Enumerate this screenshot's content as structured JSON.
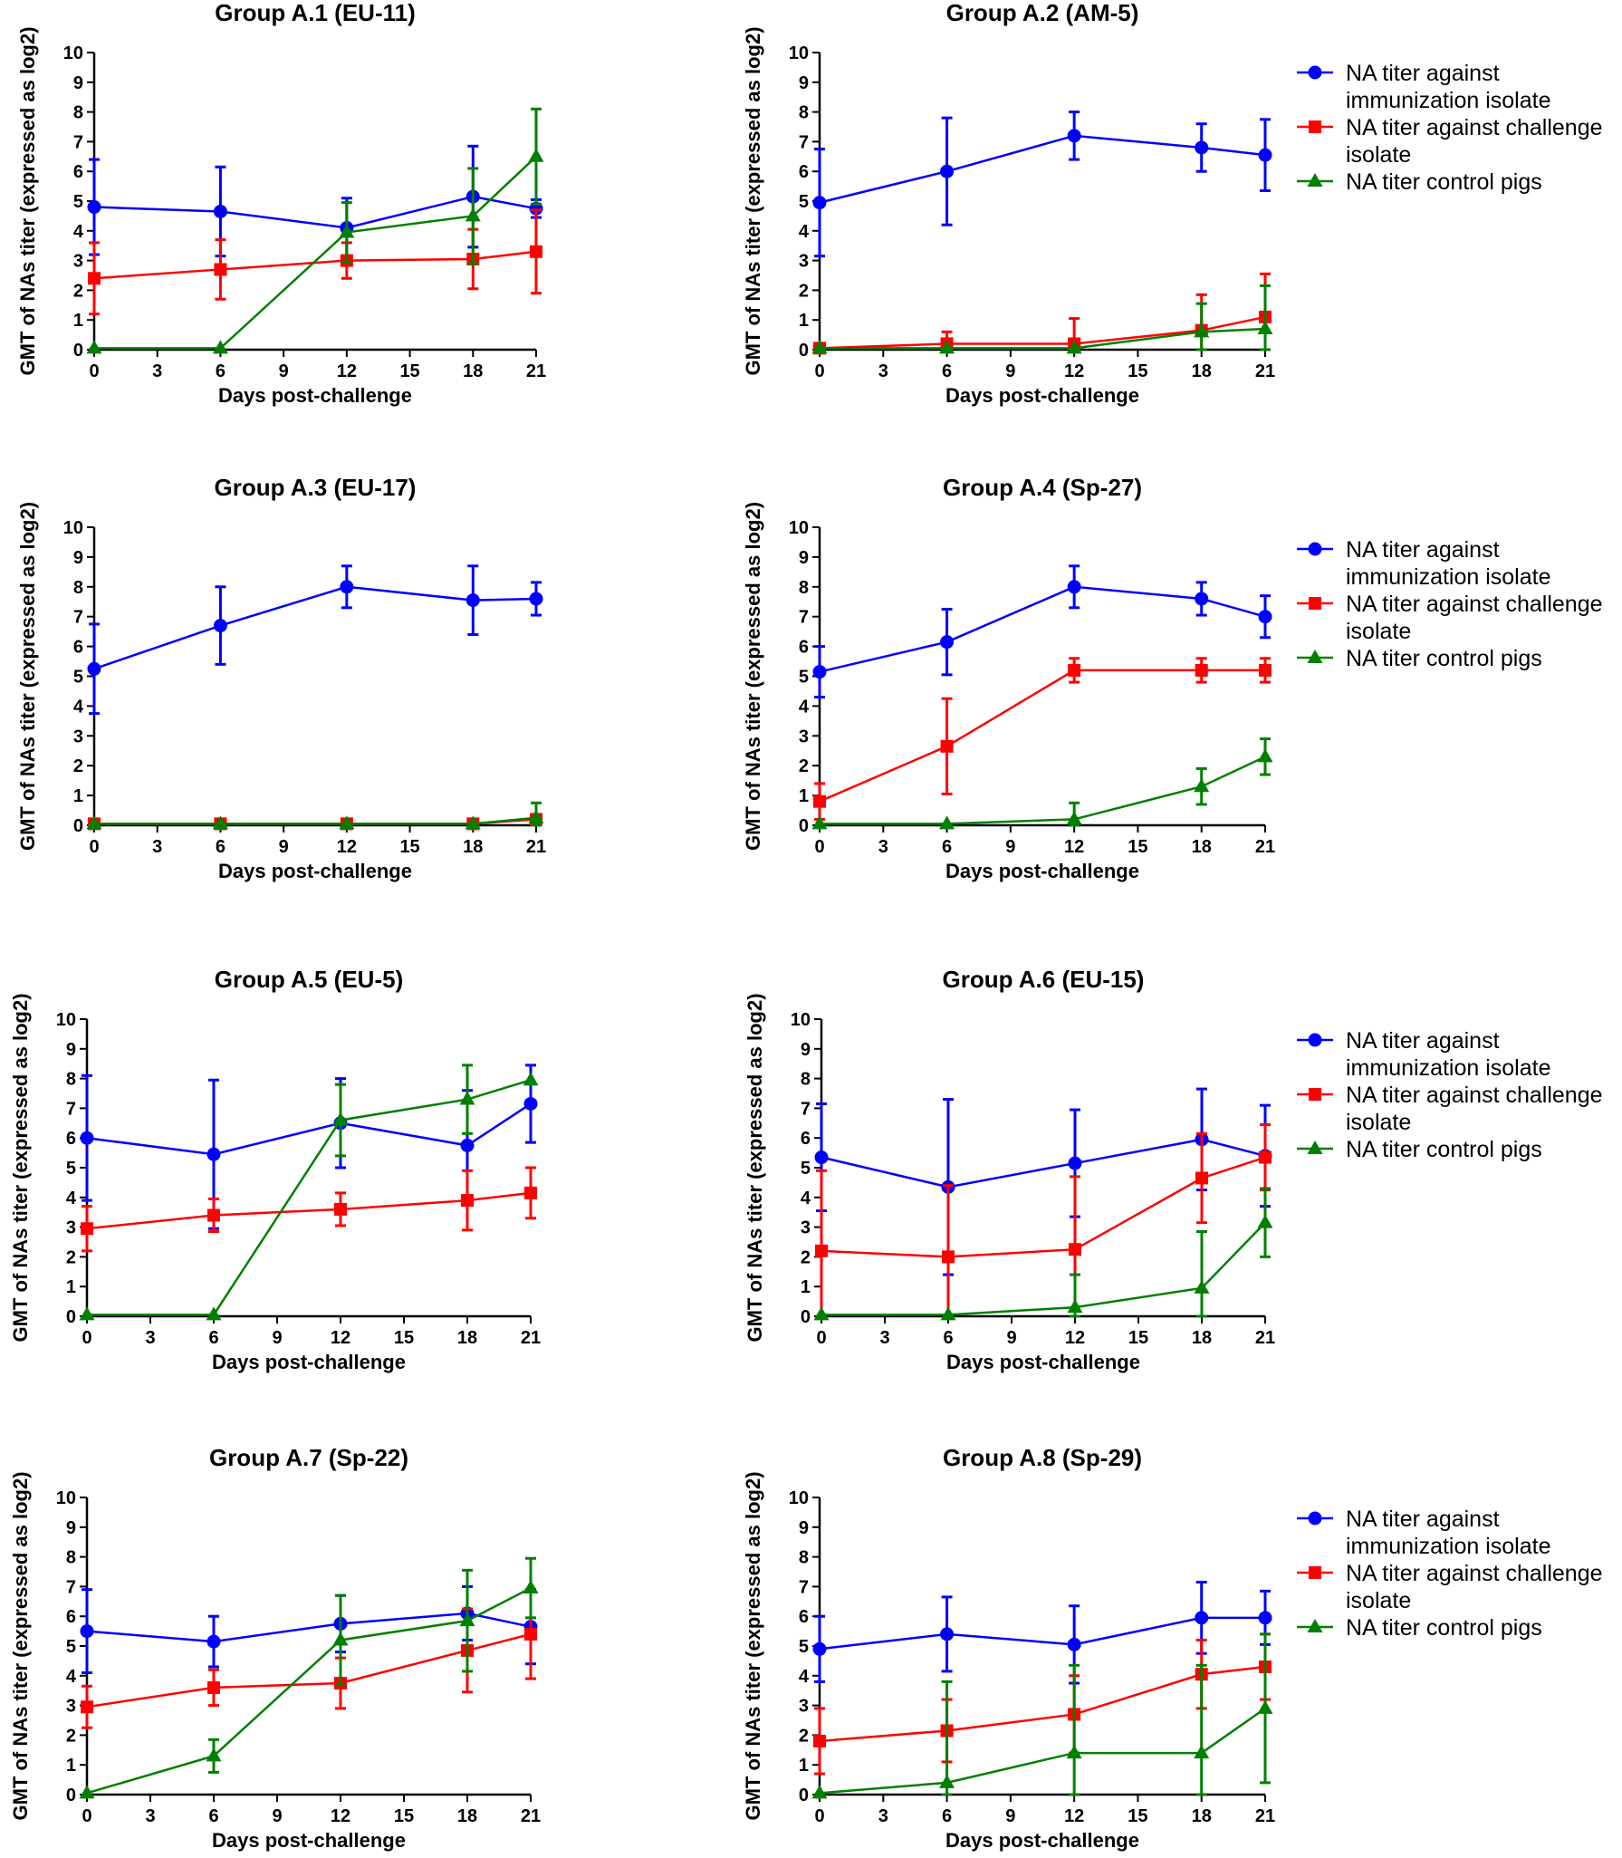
{
  "chart_data": [
    {
      "type": "line",
      "title": "Group A.1 (EU-11)",
      "xlabel": "Days post-challenge",
      "ylabel": "GMT of NAs titer (expressed as log2)",
      "x_ticks": [
        0,
        3,
        6,
        9,
        12,
        15,
        18,
        21
      ],
      "y_ticks": [
        0,
        1,
        2,
        3,
        4,
        5,
        6,
        7,
        8,
        9,
        10
      ],
      "xlim": [
        0,
        21
      ],
      "ylim": [
        0,
        10
      ],
      "x": [
        0,
        6,
        12,
        18,
        21
      ],
      "series": [
        {
          "name": "NA titer against immunization isolate",
          "color": "#0000ff",
          "marker": "circle",
          "values": [
            4.8,
            4.65,
            4.1,
            5.15,
            4.75
          ],
          "err": [
            1.6,
            1.5,
            1.0,
            1.7,
            0.3
          ]
        },
        {
          "name": "NA titer against challenge isolate",
          "color": "#ff0000",
          "marker": "square",
          "values": [
            2.4,
            2.7,
            3.0,
            3.05,
            3.3
          ],
          "err": [
            1.2,
            1.0,
            0.6,
            1.0,
            1.4
          ]
        },
        {
          "name": "NA titer control pigs",
          "color": "#008000",
          "marker": "triangle",
          "values": [
            0.05,
            0.05,
            3.95,
            4.5,
            6.5
          ],
          "err": [
            0.0,
            0.0,
            1.0,
            1.6,
            1.6
          ]
        }
      ],
      "legend": false
    },
    {
      "type": "line",
      "title": "Group A.2 (AM-5)",
      "xlabel": "Days post-challenge",
      "ylabel": "GMT of NAs titer (expressed as log2)",
      "x_ticks": [
        0,
        3,
        6,
        9,
        12,
        15,
        18,
        21
      ],
      "y_ticks": [
        0,
        1,
        2,
        3,
        4,
        5,
        6,
        7,
        8,
        9,
        10
      ],
      "xlim": [
        0,
        21
      ],
      "ylim": [
        0,
        10
      ],
      "x": [
        0,
        6,
        12,
        18,
        21
      ],
      "series": [
        {
          "name": "NA titer against immunization isolate",
          "color": "#0000ff",
          "marker": "circle",
          "values": [
            4.95,
            6.0,
            7.2,
            6.8,
            6.55
          ],
          "err": [
            1.8,
            1.8,
            0.8,
            0.8,
            1.2
          ]
        },
        {
          "name": "NA titer against challenge isolate",
          "color": "#ff0000",
          "marker": "square",
          "values": [
            0.05,
            0.2,
            0.2,
            0.65,
            1.1
          ],
          "err": [
            0.0,
            0.4,
            0.85,
            1.2,
            1.45
          ]
        },
        {
          "name": "NA titer control pigs",
          "color": "#008000",
          "marker": "triangle",
          "values": [
            0.05,
            0.05,
            0.05,
            0.6,
            0.7
          ],
          "err": [
            0.0,
            0.0,
            0.0,
            0.95,
            1.45
          ]
        }
      ],
      "legend": true,
      "legend_entries": [
        [
          "NA titer against",
          "immunization isolate"
        ],
        [
          "NA titer against challenge",
          "isolate"
        ],
        [
          "NA titer control pigs"
        ]
      ]
    },
    {
      "type": "line",
      "title": "Group A.3 (EU-17)",
      "xlabel": "Days post-challenge",
      "ylabel": "GMT of NAs titer (expressed as log2)",
      "x_ticks": [
        0,
        3,
        6,
        9,
        12,
        15,
        18,
        21
      ],
      "y_ticks": [
        0,
        1,
        2,
        3,
        4,
        5,
        6,
        7,
        8,
        9,
        10
      ],
      "xlim": [
        0,
        21
      ],
      "ylim": [
        0,
        10
      ],
      "x": [
        0,
        6,
        12,
        18,
        21
      ],
      "series": [
        {
          "name": "NA titer against immunization isolate",
          "color": "#0000ff",
          "marker": "circle",
          "values": [
            5.25,
            6.7,
            8.0,
            7.55,
            7.6
          ],
          "err": [
            1.5,
            1.3,
            0.7,
            1.15,
            0.55
          ]
        },
        {
          "name": "NA titer against challenge isolate",
          "color": "#ff0000",
          "marker": "square",
          "values": [
            0.05,
            0.05,
            0.05,
            0.05,
            0.2
          ],
          "err": [
            0.0,
            0.0,
            0.0,
            0.0,
            0.0
          ]
        },
        {
          "name": "NA titer control pigs",
          "color": "#008000",
          "marker": "triangle",
          "values": [
            0.05,
            0.05,
            0.05,
            0.05,
            0.25
          ],
          "err": [
            0.0,
            0.0,
            0.0,
            0.0,
            0.5
          ]
        }
      ],
      "legend": false
    },
    {
      "type": "line",
      "title": "Group A.4 (Sp-27)",
      "xlabel": "Days post-challenge",
      "ylabel": "GMT of NAs titer (expressed as log2)",
      "x_ticks": [
        0,
        3,
        6,
        9,
        12,
        15,
        18,
        21
      ],
      "y_ticks": [
        0,
        1,
        2,
        3,
        4,
        5,
        6,
        7,
        8,
        9,
        10
      ],
      "xlim": [
        0,
        21
      ],
      "ylim": [
        0,
        10
      ],
      "x": [
        0,
        6,
        12,
        18,
        21
      ],
      "series": [
        {
          "name": "NA titer against immunization isolate",
          "color": "#0000ff",
          "marker": "circle",
          "values": [
            5.15,
            6.15,
            8.0,
            7.6,
            7.0
          ],
          "err": [
            0.85,
            1.1,
            0.7,
            0.55,
            0.7
          ]
        },
        {
          "name": "NA titer against challenge isolate",
          "color": "#ff0000",
          "marker": "square",
          "values": [
            0.8,
            2.65,
            5.2,
            5.2,
            5.2
          ],
          "err": [
            0.6,
            1.6,
            0.4,
            0.4,
            0.4
          ]
        },
        {
          "name": "NA titer control pigs",
          "color": "#008000",
          "marker": "triangle",
          "values": [
            0.05,
            0.05,
            0.2,
            1.3,
            2.3
          ],
          "err": [
            0.0,
            0.0,
            0.55,
            0.6,
            0.6
          ]
        }
      ],
      "legend": true,
      "legend_entries": [
        [
          "NA titer against",
          "immunization isolate"
        ],
        [
          "NA titer against challenge",
          "isolate"
        ],
        [
          "NA titer control pigs"
        ]
      ]
    },
    {
      "type": "line",
      "title": "Group A.5 (EU-5)",
      "xlabel": "Days post-challenge",
      "ylabel": "GMT of NAs titer (expressed as log2)",
      "x_ticks": [
        0,
        3,
        6,
        9,
        12,
        15,
        18,
        21
      ],
      "y_ticks": [
        0,
        1,
        2,
        3,
        4,
        5,
        6,
        7,
        8,
        9,
        10
      ],
      "xlim": [
        0,
        21
      ],
      "ylim": [
        0,
        10
      ],
      "x": [
        0,
        6,
        12,
        18,
        21
      ],
      "series": [
        {
          "name": "NA titer against immunization isolate",
          "color": "#0000ff",
          "marker": "circle",
          "values": [
            6.0,
            5.45,
            6.5,
            5.75,
            7.15
          ],
          "err": [
            2.1,
            2.5,
            1.5,
            1.85,
            1.3
          ]
        },
        {
          "name": "NA titer against challenge isolate",
          "color": "#ff0000",
          "marker": "square",
          "values": [
            2.95,
            3.4,
            3.6,
            3.9,
            4.15
          ],
          "err": [
            0.75,
            0.55,
            0.55,
            1.0,
            0.85
          ]
        },
        {
          "name": "NA titer control pigs",
          "color": "#008000",
          "marker": "triangle",
          "values": [
            0.05,
            0.05,
            6.6,
            7.3,
            7.95
          ],
          "err": [
            0.0,
            0.0,
            1.2,
            1.15,
            0.0
          ]
        }
      ],
      "legend": false
    },
    {
      "type": "line",
      "title": "Group A.6 (EU-15)",
      "xlabel": "Days post-challenge",
      "ylabel": "GMT of NAs titer (expressed as log2)",
      "x_ticks": [
        0,
        3,
        6,
        9,
        12,
        15,
        18,
        21
      ],
      "y_ticks": [
        0,
        1,
        2,
        3,
        4,
        5,
        6,
        7,
        8,
        9,
        10
      ],
      "xlim": [
        0,
        21
      ],
      "ylim": [
        0,
        10
      ],
      "x": [
        0,
        6,
        12,
        18,
        21
      ],
      "series": [
        {
          "name": "NA titer against immunization isolate",
          "color": "#0000ff",
          "marker": "circle",
          "values": [
            5.35,
            4.35,
            5.15,
            5.95,
            5.4
          ],
          "err": [
            1.8,
            2.95,
            1.8,
            1.7,
            1.7
          ]
        },
        {
          "name": "NA titer against challenge isolate",
          "color": "#ff0000",
          "marker": "square",
          "values": [
            2.2,
            2.0,
            2.25,
            4.65,
            5.35
          ],
          "err": [
            2.7,
            2.4,
            2.45,
            1.5,
            1.1
          ]
        },
        {
          "name": "NA titer control pigs",
          "color": "#008000",
          "marker": "triangle",
          "values": [
            0.05,
            0.05,
            0.3,
            0.95,
            3.15
          ],
          "err": [
            0.0,
            0.0,
            1.1,
            1.9,
            1.15
          ]
        }
      ],
      "legend": true,
      "legend_entries": [
        [
          "NA titer against",
          "immunization isolate"
        ],
        [
          "NA titer against challenge",
          "isolate"
        ],
        [
          "NA titer control pigs"
        ]
      ]
    },
    {
      "type": "line",
      "title": "Group A.7 (Sp-22)",
      "xlabel": "Days post-challenge",
      "ylabel": "GMT of NAs titer (expressed as log2)",
      "x_ticks": [
        0,
        3,
        6,
        9,
        12,
        15,
        18,
        21
      ],
      "y_ticks": [
        0,
        1,
        2,
        3,
        4,
        5,
        6,
        7,
        8,
        9,
        10
      ],
      "xlim": [
        0,
        21
      ],
      "ylim": [
        0,
        10
      ],
      "x": [
        0,
        6,
        12,
        18,
        21
      ],
      "series": [
        {
          "name": "NA titer against immunization isolate",
          "color": "#0000ff",
          "marker": "circle",
          "values": [
            5.5,
            5.15,
            5.75,
            6.1,
            5.65
          ],
          "err": [
            1.4,
            0.85,
            0.95,
            0.9,
            1.25
          ]
        },
        {
          "name": "NA titer against challenge isolate",
          "color": "#ff0000",
          "marker": "square",
          "values": [
            2.95,
            3.6,
            3.75,
            4.85,
            5.4
          ],
          "err": [
            0.7,
            0.6,
            0.85,
            1.4,
            1.5
          ]
        },
        {
          "name": "NA titer control pigs",
          "color": "#008000",
          "marker": "triangle",
          "values": [
            0.05,
            1.3,
            5.2,
            5.85,
            6.95
          ],
          "err": [
            0.0,
            0.55,
            1.5,
            1.7,
            1.0
          ]
        }
      ],
      "legend": false
    },
    {
      "type": "line",
      "title": "Group A.8 (Sp-29)",
      "xlabel": "Days post-challenge",
      "ylabel": "GMT of NAs titer (expressed as log2)",
      "x_ticks": [
        0,
        3,
        6,
        9,
        12,
        15,
        18,
        21
      ],
      "y_ticks": [
        0,
        1,
        2,
        3,
        4,
        5,
        6,
        7,
        8,
        9,
        10
      ],
      "xlim": [
        0,
        21
      ],
      "ylim": [
        0,
        10
      ],
      "x": [
        0,
        6,
        12,
        18,
        21
      ],
      "series": [
        {
          "name": "NA titer against immunization isolate",
          "color": "#0000ff",
          "marker": "circle",
          "values": [
            4.9,
            5.4,
            5.05,
            5.95,
            5.95
          ],
          "err": [
            1.1,
            1.25,
            1.3,
            1.2,
            0.9
          ]
        },
        {
          "name": "NA titer against challenge isolate",
          "color": "#ff0000",
          "marker": "square",
          "values": [
            1.8,
            2.15,
            2.7,
            4.05,
            4.3
          ],
          "err": [
            1.1,
            1.05,
            1.3,
            1.15,
            1.1
          ]
        },
        {
          "name": "NA titer control pigs",
          "color": "#008000",
          "marker": "triangle",
          "values": [
            0.05,
            0.4,
            1.4,
            1.4,
            2.9
          ],
          "err": [
            0.0,
            3.4,
            2.95,
            2.95,
            2.5
          ]
        }
      ],
      "legend": true,
      "legend_entries": [
        [
          "NA titer against",
          "immunization isolate"
        ],
        [
          "NA titer against challenge",
          "isolate"
        ],
        [
          "NA titer control pigs"
        ]
      ]
    }
  ]
}
